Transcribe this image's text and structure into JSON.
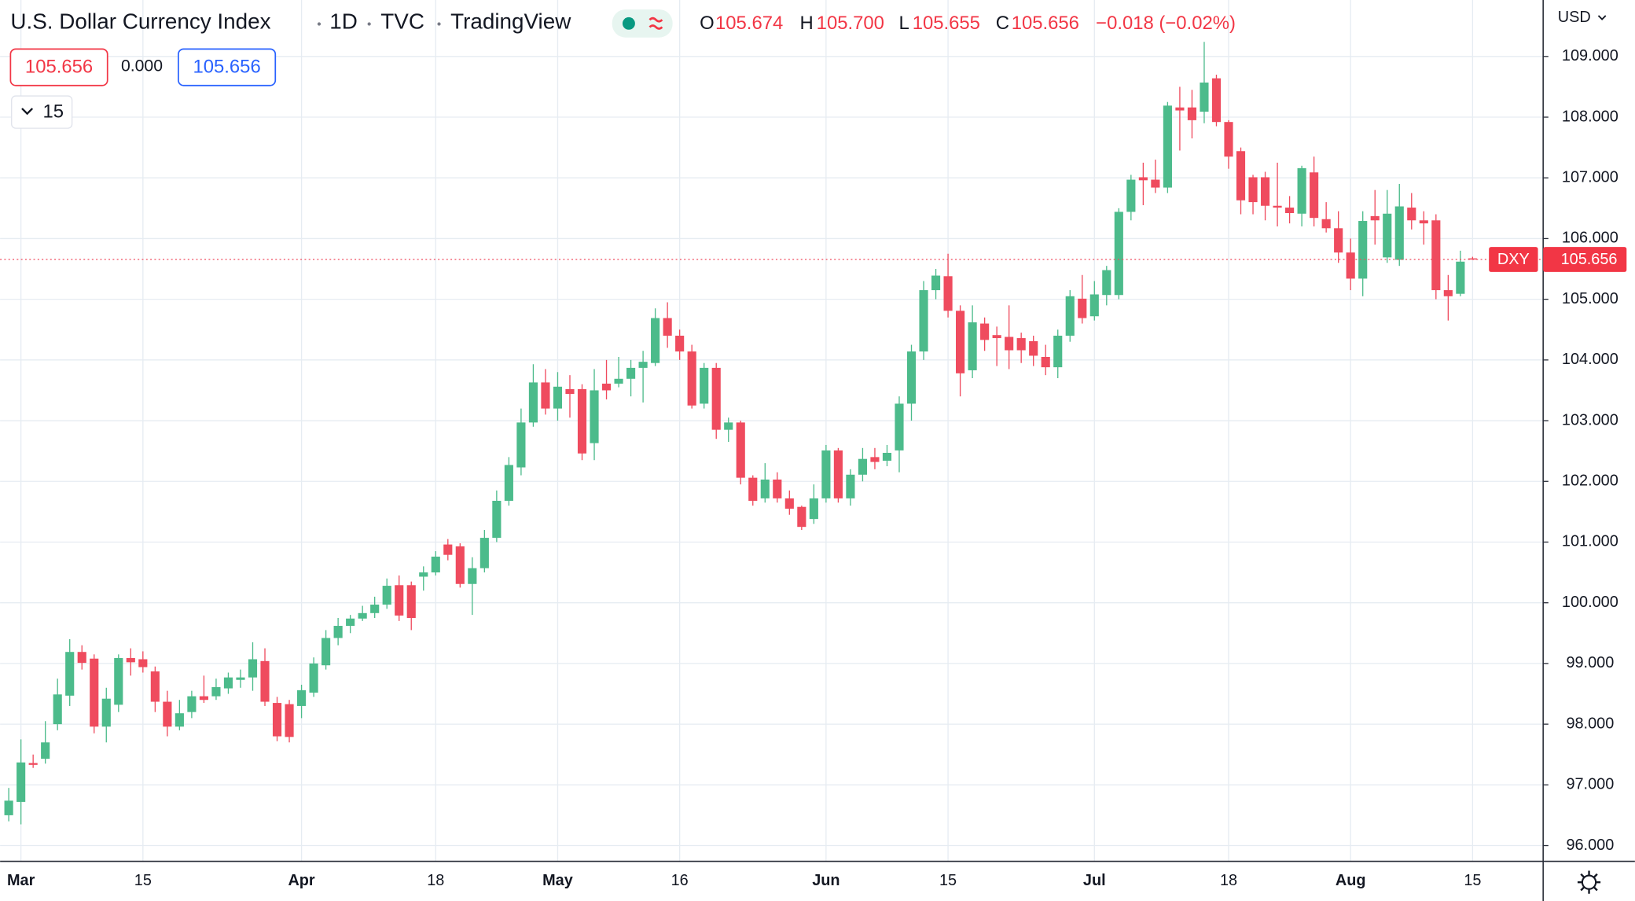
{
  "header": {
    "title": "U.S. Dollar Currency Index",
    "interval": "1D",
    "exchange": "TVC",
    "source": "TradingView",
    "ohlc": [
      {
        "letter": "O",
        "value": "105.674"
      },
      {
        "letter": "H",
        "value": "105.700"
      },
      {
        "letter": "L",
        "value": "105.655"
      },
      {
        "letter": "C",
        "value": "105.656"
      }
    ],
    "change": "−0.018 (−0.02%)",
    "sell": "105.656",
    "spread": "0.000",
    "buy": "105.656",
    "indicator_count": "15",
    "currency": "USD"
  },
  "chart_data": {
    "type": "candlestick",
    "symbol": "DXY",
    "last_price": 105.656,
    "up_color": "#4cbb8b",
    "down_color": "#ef4b5e",
    "grid": true,
    "categories": [
      null,
      "Mar",
      null,
      null,
      null,
      null,
      null,
      null,
      null,
      null,
      null,
      "15",
      null,
      null,
      null,
      null,
      null,
      null,
      null,
      null,
      null,
      null,
      null,
      null,
      "Apr",
      null,
      null,
      null,
      null,
      null,
      null,
      null,
      null,
      null,
      null,
      "18",
      null,
      null,
      null,
      null,
      null,
      null,
      null,
      null,
      null,
      "May",
      null,
      null,
      null,
      null,
      null,
      null,
      null,
      null,
      null,
      "16",
      null,
      null,
      null,
      null,
      null,
      null,
      null,
      null,
      null,
      null,
      null,
      "Jun",
      null,
      null,
      null,
      null,
      null,
      null,
      null,
      null,
      null,
      "15",
      null,
      null,
      null,
      null,
      null,
      null,
      null,
      null,
      null,
      null,
      null,
      "Jul",
      null,
      null,
      null,
      null,
      null,
      null,
      null,
      null,
      null,
      null,
      "18",
      null,
      null,
      null,
      null,
      null,
      null,
      null,
      null,
      null,
      "Aug",
      null,
      null,
      null,
      null,
      null,
      null,
      null,
      null,
      null,
      "15"
    ],
    "open": [
      96.5,
      96.72,
      97.36,
      97.43,
      98.0,
      98.47,
      99.19,
      99.08,
      97.96,
      98.32,
      99.09,
      99.07,
      98.87,
      98.37,
      97.96,
      98.2,
      98.46,
      98.46,
      98.59,
      98.73,
      98.77,
      99.04,
      98.35,
      98.33,
      98.3,
      98.52,
      98.97,
      99.42,
      99.62,
      99.74,
      99.83,
      99.97,
      100.29,
      100.29,
      100.43,
      100.5,
      100.96,
      100.93,
      100.31,
      100.57,
      101.07,
      101.68,
      102.23,
      102.97,
      103.63,
      103.2,
      103.52,
      103.52,
      102.63,
      103.61,
      103.61,
      103.69,
      103.87,
      103.95,
      104.69,
      104.4,
      104.14,
      103.28,
      103.87,
      102.85,
      102.97,
      102.06,
      101.72,
      102.03,
      101.72,
      101.58,
      101.38,
      101.72,
      102.51,
      101.72,
      102.11,
      102.4,
      102.34,
      102.51,
      103.28,
      104.14,
      105.15,
      105.38,
      104.81,
      103.83,
      104.6,
      104.41,
      104.38,
      104.36,
      104.31,
      104.05,
      103.88,
      104.4,
      105.01,
      104.72,
      105.07,
      105.07,
      106.44,
      107.01,
      106.97,
      106.84,
      108.16,
      108.16,
      108.09,
      108.64,
      107.92,
      107.44,
      107.01,
      107.01,
      106.54,
      106.51,
      106.41,
      107.09,
      106.32,
      106.17,
      105.77,
      105.34,
      106.37,
      105.69,
      105.65,
      106.51,
      106.3,
      106.3,
      105.15,
      105.09,
      105.674
    ],
    "high": [
      96.95,
      97.75,
      97.5,
      98.05,
      98.75,
      99.4,
      99.3,
      99.15,
      98.6,
      99.15,
      99.25,
      99.2,
      98.95,
      98.55,
      98.4,
      98.55,
      98.8,
      98.75,
      98.85,
      98.9,
      99.35,
      99.25,
      98.45,
      98.4,
      98.65,
      99.1,
      99.55,
      99.75,
      99.8,
      99.95,
      100.1,
      100.4,
      100.45,
      100.35,
      100.6,
      100.85,
      101.05,
      100.98,
      100.75,
      101.2,
      101.85,
      102.4,
      103.2,
      103.93,
      103.85,
      103.8,
      103.75,
      103.6,
      103.85,
      104.0,
      104.05,
      104.0,
      104.15,
      104.85,
      104.95,
      104.5,
      104.25,
      103.95,
      103.95,
      103.05,
      103.0,
      102.1,
      102.3,
      102.15,
      101.85,
      101.6,
      101.95,
      102.6,
      102.55,
      102.2,
      102.55,
      102.55,
      102.6,
      103.4,
      104.25,
      105.3,
      105.5,
      105.75,
      104.9,
      104.9,
      104.7,
      104.55,
      104.9,
      104.45,
      104.4,
      104.25,
      104.5,
      105.15,
      105.4,
      105.3,
      105.55,
      106.5,
      107.05,
      107.25,
      107.3,
      108.25,
      108.5,
      108.45,
      109.24,
      108.7,
      107.95,
      107.5,
      107.05,
      107.1,
      107.25,
      106.7,
      107.2,
      107.35,
      106.6,
      106.45,
      106.0,
      106.45,
      106.8,
      106.8,
      106.9,
      106.75,
      106.45,
      106.4,
      105.4,
      105.8,
      105.7
    ],
    "low": [
      96.4,
      96.35,
      97.28,
      97.35,
      97.9,
      98.3,
      98.9,
      97.85,
      97.7,
      98.2,
      98.8,
      98.85,
      98.2,
      97.8,
      97.9,
      98.1,
      98.35,
      98.4,
      98.5,
      98.6,
      98.55,
      98.3,
      97.72,
      97.7,
      98.1,
      98.45,
      98.9,
      99.3,
      99.5,
      99.7,
      99.75,
      99.9,
      99.7,
      99.55,
      100.2,
      100.45,
      100.7,
      100.25,
      99.8,
      100.5,
      101.0,
      101.6,
      102.1,
      102.9,
      103.1,
      103.0,
      103.05,
      102.35,
      102.35,
      103.35,
      103.55,
      103.4,
      103.3,
      103.9,
      104.2,
      104.0,
      103.2,
      103.2,
      102.7,
      102.65,
      101.95,
      101.6,
      101.65,
      101.65,
      101.45,
      101.2,
      101.3,
      101.65,
      101.65,
      101.6,
      102.0,
      102.2,
      102.25,
      102.15,
      103.0,
      104.0,
      105.0,
      104.7,
      103.4,
      103.7,
      104.15,
      103.9,
      103.85,
      103.95,
      103.9,
      103.75,
      103.7,
      104.3,
      104.6,
      104.65,
      104.9,
      105.0,
      106.3,
      106.55,
      106.75,
      106.75,
      107.45,
      107.65,
      107.9,
      107.85,
      107.15,
      106.4,
      106.4,
      106.3,
      106.2,
      106.25,
      106.2,
      106.2,
      106.1,
      105.6,
      105.15,
      105.05,
      105.9,
      105.6,
      105.55,
      106.15,
      105.9,
      105.0,
      104.65,
      105.05,
      105.655
    ],
    "close": [
      96.74,
      97.37,
      97.33,
      97.7,
      98.49,
      99.19,
      99.01,
      97.96,
      98.42,
      99.09,
      99.02,
      98.94,
      98.37,
      97.96,
      98.18,
      98.46,
      98.4,
      98.61,
      98.77,
      98.77,
      99.07,
      98.37,
      97.8,
      97.79,
      98.56,
      99.0,
      99.42,
      99.62,
      99.74,
      99.83,
      99.97,
      100.28,
      99.79,
      99.75,
      100.5,
      100.76,
      100.79,
      100.31,
      100.57,
      101.07,
      101.68,
      102.27,
      102.97,
      103.63,
      103.2,
      103.56,
      103.44,
      102.46,
      103.5,
      103.5,
      103.69,
      103.87,
      103.97,
      104.69,
      104.4,
      104.14,
      103.25,
      103.87,
      102.85,
      102.97,
      102.06,
      101.68,
      102.03,
      101.72,
      101.55,
      101.25,
      101.72,
      102.51,
      101.72,
      102.11,
      102.37,
      102.32,
      102.47,
      103.28,
      104.14,
      105.15,
      105.39,
      104.81,
      103.78,
      104.62,
      104.33,
      104.36,
      104.16,
      104.16,
      104.07,
      103.88,
      104.4,
      105.05,
      104.69,
      105.08,
      105.48,
      106.44,
      106.97,
      106.96,
      106.84,
      108.19,
      108.11,
      107.95,
      108.57,
      107.92,
      107.35,
      106.63,
      106.6,
      106.54,
      106.51,
      106.42,
      107.16,
      106.34,
      106.17,
      105.77,
      105.34,
      106.29,
      106.3,
      106.41,
      106.53,
      106.3,
      106.25,
      105.15,
      105.05,
      105.62,
      105.656
    ],
    "ylim": [
      95.74,
      109.93
    ],
    "yticks": [
      {
        "value": 96,
        "label": "96.000"
      },
      {
        "value": 97,
        "label": "97.000"
      },
      {
        "value": 98,
        "label": "98.000"
      },
      {
        "value": 99,
        "label": "99.000"
      },
      {
        "value": 100,
        "label": "100.000"
      },
      {
        "value": 101,
        "label": "101.000"
      },
      {
        "value": 102,
        "label": "102.000"
      },
      {
        "value": 103,
        "label": "103.000"
      },
      {
        "value": 104,
        "label": "104.000"
      },
      {
        "value": 105,
        "label": "105.000"
      },
      {
        "value": 106,
        "label": "106.000"
      },
      {
        "value": 107,
        "label": "107.000"
      },
      {
        "value": 108,
        "label": "108.000"
      },
      {
        "value": 109,
        "label": "109.000"
      }
    ]
  }
}
